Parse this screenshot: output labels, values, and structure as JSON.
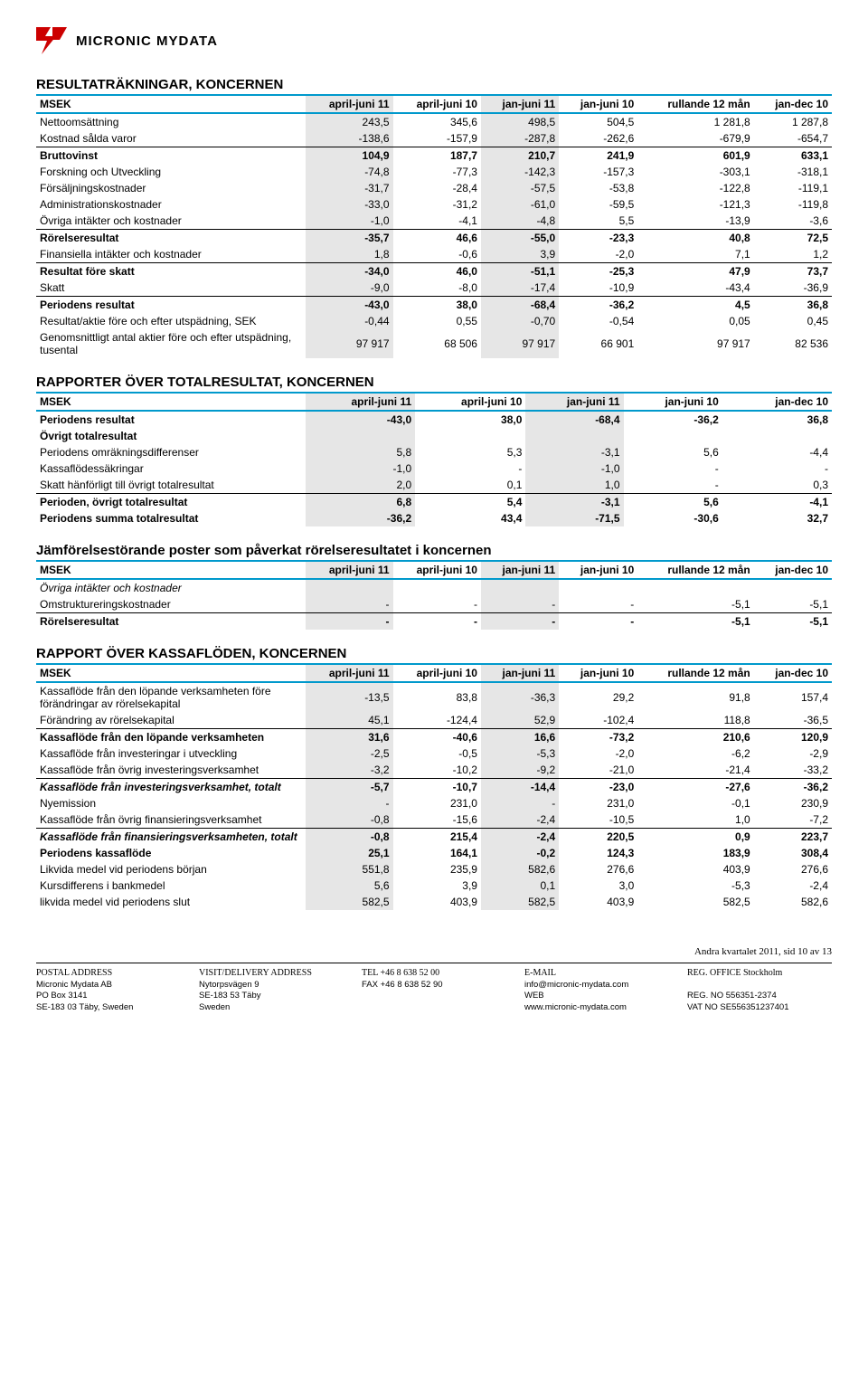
{
  "brand": {
    "name": "MICRONIC MYDATA",
    "accent": "#cc0000"
  },
  "shade_col_indices": [
    1,
    3
  ],
  "tables": [
    {
      "title": "RESULTATRÄKNINGAR, KONCERNEN",
      "columns": [
        "MSEK",
        "april-juni 11",
        "april-juni 10",
        "jan-juni 11",
        "jan-juni 10",
        "rullande 12 mån",
        "jan-dec 10"
      ],
      "rows": [
        {
          "label": "Nettoomsättning",
          "v": [
            "243,5",
            "345,6",
            "498,5",
            "504,5",
            "1 281,8",
            "1 287,8"
          ]
        },
        {
          "label": "Kostnad sålda varor",
          "v": [
            "-138,6",
            "-157,9",
            "-287,8",
            "-262,6",
            "-679,9",
            "-654,7"
          ],
          "underline": true
        },
        {
          "label": "Bruttovinst",
          "v": [
            "104,9",
            "187,7",
            "210,7",
            "241,9",
            "601,9",
            "633,1"
          ],
          "bold": true
        },
        {
          "label": "Forskning och Utveckling",
          "v": [
            "-74,8",
            "-77,3",
            "-142,3",
            "-157,3",
            "-303,1",
            "-318,1"
          ]
        },
        {
          "label": "Försäljningskostnader",
          "v": [
            "-31,7",
            "-28,4",
            "-57,5",
            "-53,8",
            "-122,8",
            "-119,1"
          ]
        },
        {
          "label": "Administrationskostnader",
          "v": [
            "-33,0",
            "-31,2",
            "-61,0",
            "-59,5",
            "-121,3",
            "-119,8"
          ]
        },
        {
          "label": "Övriga intäkter och kostnader",
          "v": [
            "-1,0",
            "-4,1",
            "-4,8",
            "5,5",
            "-13,9",
            "-3,6"
          ],
          "underline": true
        },
        {
          "label": "Rörelseresultat",
          "v": [
            "-35,7",
            "46,6",
            "-55,0",
            "-23,3",
            "40,8",
            "72,5"
          ],
          "bold": true
        },
        {
          "label": "Finansiella intäkter och kostnader",
          "v": [
            "1,8",
            "-0,6",
            "3,9",
            "-2,0",
            "7,1",
            "1,2"
          ],
          "underline": true
        },
        {
          "label": "Resultat före skatt",
          "v": [
            "-34,0",
            "46,0",
            "-51,1",
            "-25,3",
            "47,9",
            "73,7"
          ],
          "bold": true
        },
        {
          "label": "Skatt",
          "v": [
            "-9,0",
            "-8,0",
            "-17,4",
            "-10,9",
            "-43,4",
            "-36,9"
          ],
          "underline": true
        },
        {
          "label": "Periodens resultat",
          "v": [
            "-43,0",
            "38,0",
            "-68,4",
            "-36,2",
            "4,5",
            "36,8"
          ],
          "bold": true
        },
        {
          "label": "Resultat/aktie före och efter utspädning, SEK",
          "v": [
            "-0,44",
            "0,55",
            "-0,70",
            "-0,54",
            "0,05",
            "0,45"
          ]
        },
        {
          "label": "Genomsnittligt antal aktier före och efter utspädning, tusental",
          "v": [
            "97 917",
            "68 506",
            "97 917",
            "66 901",
            "97 917",
            "82 536"
          ]
        }
      ]
    },
    {
      "title": "RAPPORTER ÖVER TOTALRESULTAT, KONCERNEN",
      "columns": [
        "MSEK",
        "april-juni 11",
        "april-juni 10",
        "jan-juni 11",
        "jan-juni 10",
        "",
        "jan-dec 10"
      ],
      "hide_empty_cols": true,
      "rows": [
        {
          "label": "Periodens resultat",
          "v": [
            "-43,0",
            "38,0",
            "-68,4",
            "-36,2",
            "",
            "36,8"
          ],
          "bold": true
        },
        {
          "label": "Övrigt totalresultat",
          "v": [
            "",
            "",
            "",
            "",
            "",
            ""
          ],
          "bold": true
        },
        {
          "label": "Periodens omräkningsdifferenser",
          "v": [
            "5,8",
            "5,3",
            "-3,1",
            "5,6",
            "",
            "-4,4"
          ]
        },
        {
          "label": "Kassaflödessäkringar",
          "v": [
            "-1,0",
            "-",
            "-1,0",
            "-",
            "",
            "-"
          ]
        },
        {
          "label": "Skatt hänförligt till övrigt totalresultat",
          "v": [
            "2,0",
            "0,1",
            "1,0",
            "-",
            "",
            "0,3"
          ],
          "underline": true
        },
        {
          "label": "Perioden, övrigt totalresultat",
          "v": [
            "6,8",
            "5,4",
            "-3,1",
            "5,6",
            "",
            "-4,1"
          ],
          "bold": true
        },
        {
          "label": "Periodens summa totalresultat",
          "v": [
            "-36,2",
            "43,4",
            "-71,5",
            "-30,6",
            "",
            "32,7"
          ],
          "bold": true
        }
      ]
    },
    {
      "title": "Jämförelsestörande poster som påverkat rörelseresultatet i koncernen",
      "columns": [
        "MSEK",
        "april-juni 11",
        "april-juni 10",
        "jan-juni 11",
        "jan-juni 10",
        "rullande 12 mån",
        "jan-dec 10"
      ],
      "rows": [
        {
          "label": "Övriga intäkter och kostnader",
          "v": [
            "",
            "",
            "",
            "",
            "",
            ""
          ],
          "italic": true
        },
        {
          "label": "Omstruktureringskostnader",
          "v": [
            "-",
            "-",
            "-",
            "-",
            "-5,1",
            "-5,1"
          ],
          "underline": true
        },
        {
          "label": "Rörelseresultat",
          "v": [
            "-",
            "-",
            "-",
            "-",
            "-5,1",
            "-5,1"
          ],
          "bold": true
        }
      ]
    },
    {
      "title": "RAPPORT ÖVER KASSAFLÖDEN, KONCERNEN",
      "columns": [
        "MSEK",
        "april-juni 11",
        "april-juni 10",
        "jan-juni 11",
        "jan-juni 10",
        "rullande 12 mån",
        "jan-dec 10"
      ],
      "rows": [
        {
          "label": "Kassaflöde från den löpande verksamheten före förändringar av rörelsekapital",
          "v": [
            "-13,5",
            "83,8",
            "-36,3",
            "29,2",
            "91,8",
            "157,4"
          ]
        },
        {
          "label": "Förändring av rörelsekapital",
          "v": [
            "45,1",
            "-124,4",
            "52,9",
            "-102,4",
            "118,8",
            "-36,5"
          ],
          "underline": true
        },
        {
          "label": "Kassaflöde från den löpande verksamheten",
          "v": [
            "31,6",
            "-40,6",
            "16,6",
            "-73,2",
            "210,6",
            "120,9"
          ],
          "bold": true
        },
        {
          "label": "Kassaflöde från investeringar i utveckling",
          "v": [
            "-2,5",
            "-0,5",
            "-5,3",
            "-2,0",
            "-6,2",
            "-2,9"
          ]
        },
        {
          "label": "Kassaflöde från övrig investeringsverksamhet",
          "v": [
            "-3,2",
            "-10,2",
            "-9,2",
            "-21,0",
            "-21,4",
            "-33,2"
          ],
          "underline": true
        },
        {
          "label": "Kassaflöde från investeringsverksamhet, totalt",
          "v": [
            "-5,7",
            "-10,7",
            "-14,4",
            "-23,0",
            "-27,6",
            "-36,2"
          ],
          "bold": true,
          "italic": true
        },
        {
          "label": "Nyemission",
          "v": [
            "-",
            "231,0",
            "-",
            "231,0",
            "-0,1",
            "230,9"
          ]
        },
        {
          "label": "Kassaflöde från övrig finansieringsverksamhet",
          "v": [
            "-0,8",
            "-15,6",
            "-2,4",
            "-10,5",
            "1,0",
            "-7,2"
          ],
          "underline": true
        },
        {
          "label": "Kassaflöde från finansieringsverksamheten, totalt",
          "v": [
            "-0,8",
            "215,4",
            "-2,4",
            "220,5",
            "0,9",
            "223,7"
          ],
          "bold": true,
          "italic": true
        },
        {
          "label": "Periodens kassaflöde",
          "v": [
            "25,1",
            "164,1",
            "-0,2",
            "124,3",
            "183,9",
            "308,4"
          ],
          "bold": true
        },
        {
          "label": "Likvida medel vid periodens början",
          "v": [
            "551,8",
            "235,9",
            "582,6",
            "276,6",
            "403,9",
            "276,6"
          ]
        },
        {
          "label": "Kursdifferens i bankmedel",
          "v": [
            "5,6",
            "3,9",
            "0,1",
            "3,0",
            "-5,3",
            "-2,4"
          ]
        },
        {
          "label": "likvida medel vid periodens slut",
          "v": [
            "582,5",
            "403,9",
            "582,5",
            "403,9",
            "582,5",
            "582,6"
          ]
        }
      ]
    }
  ],
  "footer": {
    "pageinfo": "Andra kvartalet 2011, sid 10 av 13",
    "cols": [
      [
        "POSTAL ADDRESS",
        "Micronic Mydata AB",
        "PO Box 3141",
        "SE-183 03 Täby, Sweden"
      ],
      [
        "VISIT/DELIVERY ADDRESS",
        "Nytorpsvägen 9",
        "SE-183 53 Täby",
        "Sweden"
      ],
      [
        "TEL   +46 8 638 52 00",
        "FAX   +46 8 638 52 90"
      ],
      [
        "E-MAIL",
        "info@micronic-mydata.com",
        "WEB",
        "www.micronic-mydata.com"
      ],
      [
        "REG. OFFICE  Stockholm",
        "",
        "REG. NO  556351-2374",
        "VAT NO  SE556351237401"
      ]
    ]
  }
}
